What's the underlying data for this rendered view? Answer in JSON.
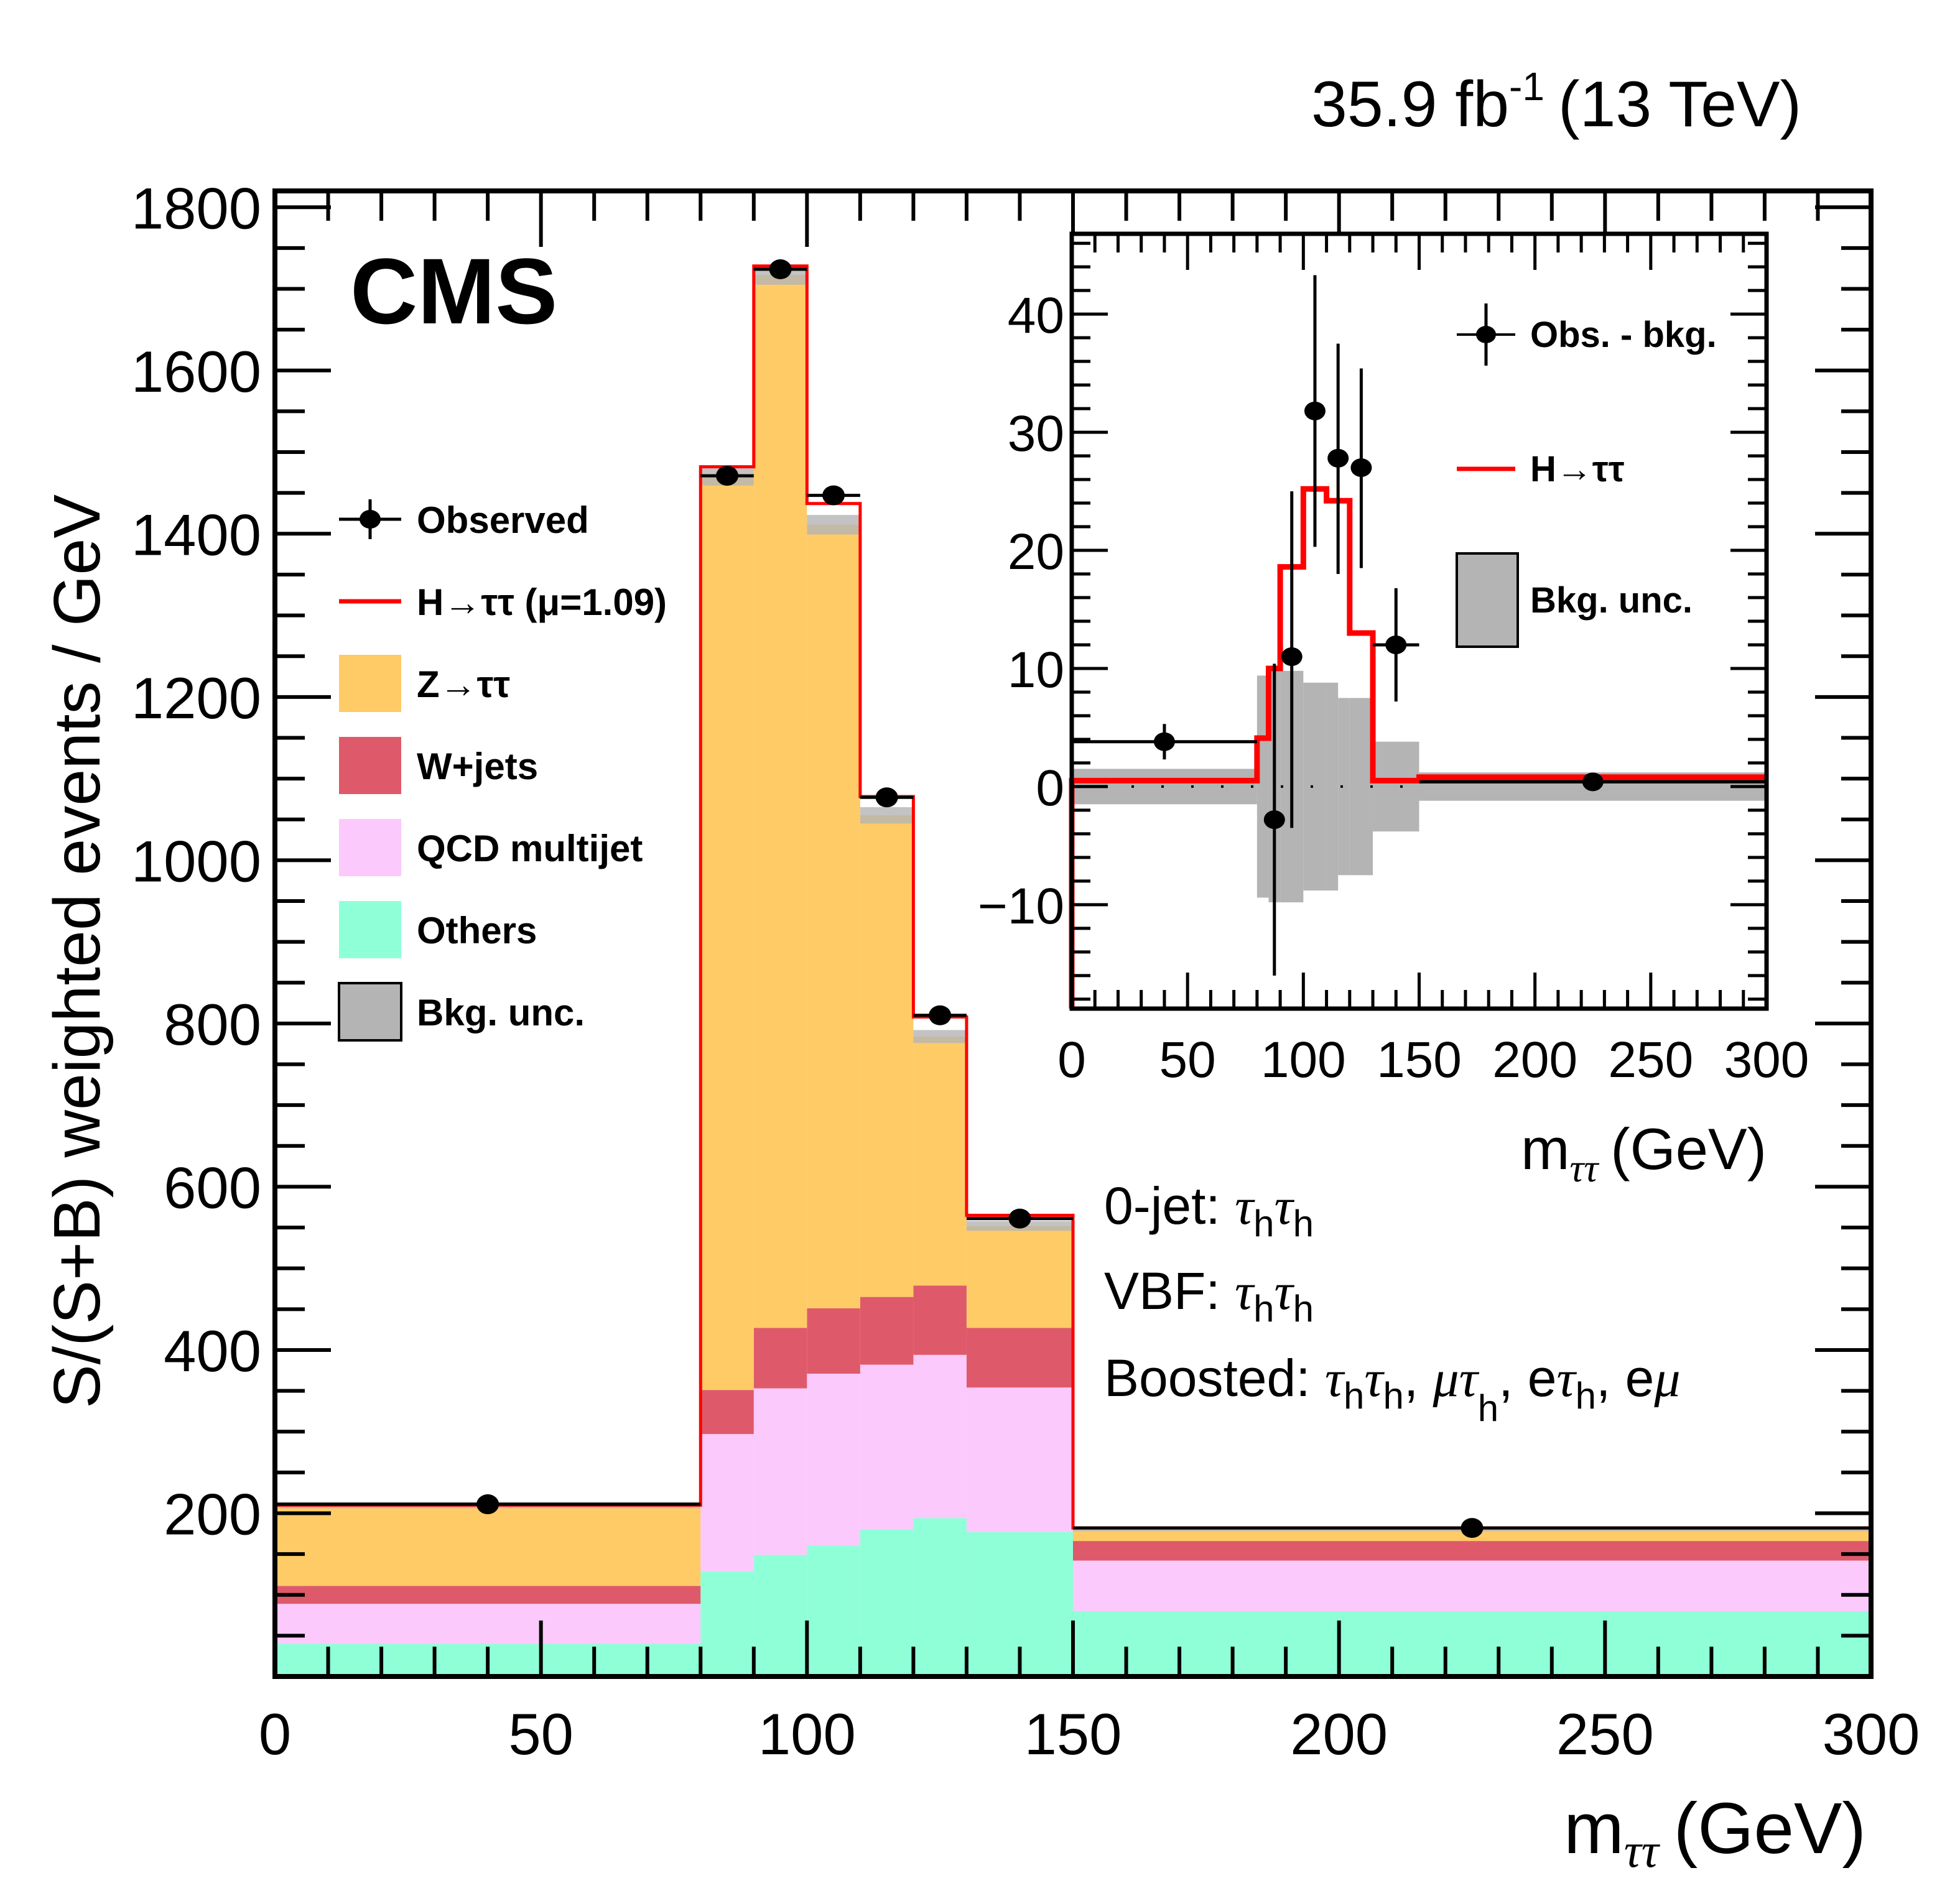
{
  "header": {
    "lumi_text": "35.9 fb",
    "lumi_sup": "-1",
    "energy_text": "(13 TeV)",
    "experiment": "CMS"
  },
  "chart_data": [
    {
      "id": "main",
      "type": "bar",
      "subtype": "stacked-histogram",
      "title": "",
      "xlabel_main": "m",
      "xlabel_sub": "ττ",
      "xlabel_unit": "(GeV)",
      "ylabel": "S/(S+B) weighted events / GeV",
      "xlim": [
        0,
        300
      ],
      "ylim": [
        0,
        1820
      ],
      "xticks": [
        0,
        50,
        100,
        150,
        200,
        250,
        300
      ],
      "xtick_labels": [
        "0",
        "50",
        "100",
        "150",
        "200",
        "250",
        "300"
      ],
      "yticks": [
        200,
        400,
        600,
        800,
        1000,
        1200,
        1400,
        1600,
        1800
      ],
      "ytick_labels": [
        "200",
        "400",
        "600",
        "800",
        "1000",
        "1200",
        "1400",
        "1600",
        "1800"
      ],
      "bin_edges": [
        0,
        80,
        90,
        100,
        110,
        120,
        130,
        150,
        300
      ],
      "series": [
        {
          "name": "Others",
          "color": "#8FFFD8",
          "values": [
            40,
            129,
            149,
            160,
            180,
            194,
            177,
            80
          ]
        },
        {
          "name": "QCD multijet",
          "color": "#FBC9FB",
          "values": [
            49,
            168,
            204,
            211,
            202,
            200,
            177,
            62
          ]
        },
        {
          "name": "W+jets",
          "color": "#DE5A6A",
          "values": [
            22,
            54,
            74,
            80,
            83,
            85,
            73,
            24
          ]
        },
        {
          "name": "Z→ττ",
          "color": "#FECB67",
          "values": [
            99,
            1120,
            1290,
            960,
            590,
            305,
            125,
            14
          ]
        }
      ],
      "bkg_unc": {
        "name": "Bkg. unc.",
        "color": "#B4B4B4",
        "half_width": [
          4,
          12,
          12,
          12,
          10,
          8,
          6,
          2
        ]
      },
      "signal": {
        "name": "H→ττ (μ=1.09)",
        "color": "#FF0000",
        "total_values": [
          210,
          1482,
          1728,
          1437,
          1078,
          808,
          565,
          182
        ]
      },
      "observed": {
        "name": "Observed",
        "x": [
          40,
          85,
          95,
          105,
          115,
          125,
          140,
          225
        ],
        "y": [
          211,
          1471,
          1724,
          1447,
          1077,
          810,
          561,
          182
        ],
        "xerr": [
          40,
          5,
          5,
          5,
          5,
          5,
          10,
          75
        ]
      },
      "legend": {
        "placement": "top-left",
        "entries": [
          {
            "label": "Observed",
            "kind": "marker"
          },
          {
            "label": "H→ττ (μ=1.09)",
            "kind": "line",
            "color": "#FF0000"
          },
          {
            "label": "Z→ττ",
            "kind": "fill",
            "color": "#FECB67"
          },
          {
            "label": "W+jets",
            "kind": "fill",
            "color": "#DE5A6A"
          },
          {
            "label": "QCD multijet",
            "kind": "fill",
            "color": "#FBC9FB"
          },
          {
            "label": "Others",
            "kind": "fill",
            "color": "#8FFFD8"
          },
          {
            "label": "Bkg. unc.",
            "kind": "box",
            "color": "#B4B4B4"
          }
        ]
      },
      "annotations": [
        {
          "prefix": "0-jet: ",
          "text": "τ_h τ_h"
        },
        {
          "prefix": "VBF: ",
          "text": "τ_h τ_h"
        },
        {
          "prefix": "Boosted: ",
          "text": "τ_h τ_h, μτ_h, eτ_h, eμ"
        }
      ]
    },
    {
      "id": "inset",
      "type": "line",
      "subtype": "step-histogram-with-points",
      "xlabel_main": "m",
      "xlabel_sub": "ττ",
      "xlabel_unit": "(GeV)",
      "ylabel": "",
      "xlim": [
        0,
        300
      ],
      "ylim": [
        -18.8,
        46.8
      ],
      "xticks": [
        0,
        50,
        100,
        150,
        200,
        250,
        300
      ],
      "xtick_labels": [
        "0",
        "50",
        "100",
        "150",
        "200",
        "250",
        "300"
      ],
      "yticks": [
        -10,
        0,
        10,
        20,
        30,
        40
      ],
      "ytick_labels": [
        "−10",
        "0",
        "10",
        "20",
        "30",
        "40"
      ],
      "bin_edges": [
        0,
        80,
        85,
        90,
        100,
        110,
        115,
        120,
        130,
        150,
        300
      ],
      "signal": {
        "name": "H→ττ",
        "color": "#FF0000",
        "values": [
          0.5,
          4.1,
          10.0,
          18.6,
          25.2,
          24.2,
          24.2,
          13.0,
          0.5,
          0.8
        ]
      },
      "bkg_unc": {
        "name": "Bkg. unc.",
        "color": "#B4B4B4",
        "bin_edges": [
          0,
          80,
          85,
          90,
          100,
          110,
          115,
          120,
          130,
          150,
          300
        ],
        "half_width": [
          1.5,
          9.4,
          9.8,
          9.8,
          8.8,
          8.8,
          7.5,
          7.5,
          3.8,
          1.2
        ]
      },
      "observed": {
        "name": "Obs. - bkg.",
        "x": [
          40,
          87.5,
          95,
          105,
          115,
          125,
          140,
          225
        ],
        "y": [
          3.8,
          -2.8,
          11.0,
          31.8,
          27.8,
          27.0,
          12.0,
          0.4
        ],
        "yerr_low": [
          1.5,
          13.2,
          14.5,
          11.5,
          9.8,
          8.5,
          4.8,
          0.5
        ],
        "yerr_high": [
          1.5,
          13.2,
          14.0,
          11.5,
          9.7,
          8.4,
          4.8,
          0.5
        ],
        "xerr": [
          40,
          2.5,
          5,
          5,
          5,
          5,
          10,
          75
        ]
      },
      "legend": {
        "placement": "top-right",
        "entries": [
          {
            "label": "Obs. - bkg.",
            "kind": "marker"
          },
          {
            "label": "H→ττ",
            "kind": "line",
            "color": "#FF0000"
          },
          {
            "label": "Bkg. unc.",
            "kind": "box",
            "color": "#B4B4B4"
          }
        ]
      }
    }
  ]
}
